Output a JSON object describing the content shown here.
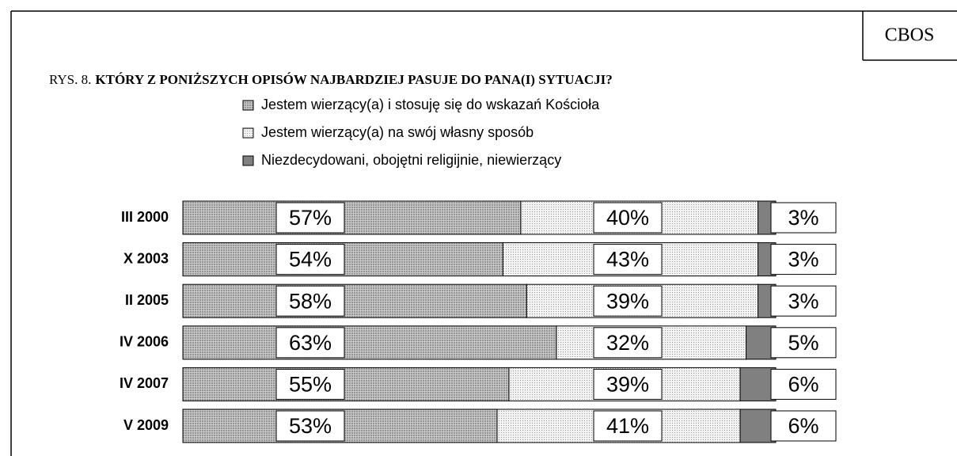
{
  "chart_data": {
    "type": "stacked-bar-horizontal",
    "source": "CBOS",
    "figure_label": "RYS. 8.",
    "title": "KTÓRY Z PONIŻSZYCH OPISÓW NAJBARDZIEJ PASUJE DO PANA(I) SYTUACJI?",
    "categories": [
      "III 2000",
      "X 2003",
      "II 2005",
      "IV 2006",
      "IV 2007",
      "V 2009"
    ],
    "xlim": [
      0,
      100
    ],
    "series": [
      {
        "name": "Jestem wierzący(a) i stosuję się do wskazań Kościoła",
        "color": "#a3a3a3",
        "values": [
          57,
          54,
          58,
          63,
          55,
          53
        ],
        "value_labels": [
          "57%",
          "54%",
          "58%",
          "63%",
          "55%",
          "53%"
        ]
      },
      {
        "name": "Jestem wierzący(a) na swój własny sposób",
        "color": "#dedede",
        "values": [
          40,
          43,
          39,
          32,
          39,
          41
        ],
        "value_labels": [
          "40%",
          "43%",
          "39%",
          "32%",
          "39%",
          "41%"
        ]
      },
      {
        "name": "Niezdecydowani, obojętni religijnie, niewierzący",
        "color": "#808080",
        "values": [
          3,
          3,
          3,
          5,
          6,
          6
        ],
        "value_labels": [
          "3%",
          "3%",
          "3%",
          "5%",
          "6%",
          "6%"
        ]
      }
    ]
  }
}
